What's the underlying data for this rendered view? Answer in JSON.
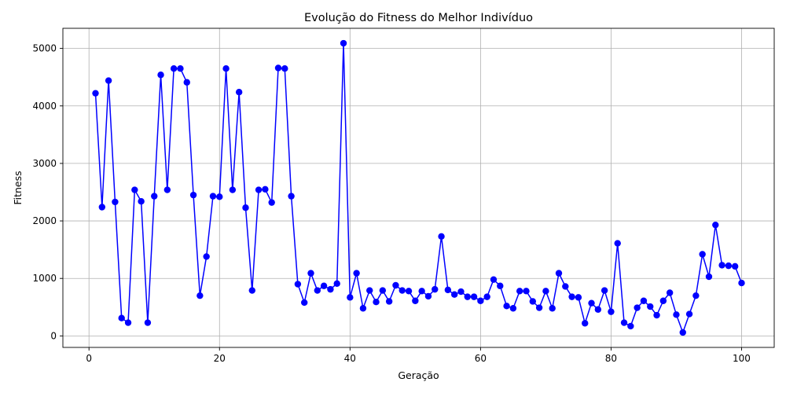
{
  "chart_data": {
    "type": "line",
    "title": "Evolução do Fitness do Melhor Indivíduo",
    "xlabel": "Geração",
    "ylabel": "Fitness",
    "xlim": [
      -4,
      105
    ],
    "ylim": [
      -200,
      5350
    ],
    "xticks": [
      0,
      20,
      40,
      60,
      80,
      100
    ],
    "yticks": [
      0,
      1000,
      2000,
      3000,
      4000,
      5000
    ],
    "grid": true,
    "marker": "circle",
    "colors": {
      "line": "#0000ff",
      "marker": "#0000ff"
    },
    "series": [
      {
        "x": [
          1,
          2,
          3,
          4,
          5,
          6,
          7,
          8,
          9,
          10,
          11,
          12,
          13,
          14,
          15,
          16,
          17,
          18,
          19,
          20,
          21,
          22,
          23,
          24,
          25,
          26,
          27,
          28,
          29,
          30,
          31,
          32,
          33,
          34,
          35,
          36,
          37,
          38,
          39,
          40,
          41,
          42,
          43,
          44,
          45,
          46,
          47,
          48,
          49,
          50,
          51,
          52,
          53,
          54,
          55,
          56,
          57,
          58,
          59,
          60,
          61,
          62,
          63,
          64,
          65,
          66,
          67,
          68,
          69,
          70,
          71,
          72,
          73,
          74,
          75,
          76,
          77,
          78,
          79,
          80,
          81,
          82,
          83,
          84,
          85,
          86,
          87,
          88,
          89,
          90,
          91,
          92,
          93,
          94,
          95,
          96,
          97,
          98,
          99,
          100
        ],
        "values": [
          4220,
          2240,
          4440,
          2330,
          310,
          230,
          2540,
          2340,
          230,
          2430,
          4540,
          2540,
          4650,
          4650,
          4410,
          2450,
          700,
          1380,
          2430,
          2420,
          4650,
          2540,
          4240,
          2230,
          790,
          2540,
          2550,
          2320,
          4660,
          4650,
          2430,
          900,
          580,
          1090,
          790,
          870,
          810,
          910,
          5090,
          670,
          1090,
          480,
          790,
          590,
          790,
          600,
          880,
          790,
          780,
          610,
          780,
          690,
          810,
          1730,
          800,
          720,
          770,
          680,
          680,
          610,
          680,
          980,
          870,
          520,
          480,
          780,
          780,
          600,
          490,
          780,
          480,
          1090,
          860,
          680,
          670,
          220,
          570,
          460,
          790,
          420,
          1610,
          230,
          170,
          490,
          610,
          510,
          360,
          610,
          750,
          370,
          60,
          380,
          700,
          1420,
          1030,
          1930,
          1230,
          1220,
          1210,
          920
        ]
      }
    ]
  }
}
